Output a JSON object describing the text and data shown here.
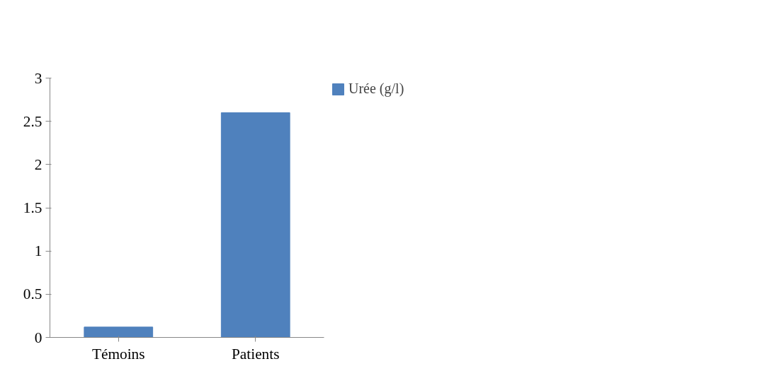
{
  "chart_data": {
    "type": "bar",
    "categories": [
      "Témoins",
      "Patients"
    ],
    "series": [
      {
        "name": "Urée (g/l)",
        "color": "#4f81bd",
        "values": [
          0.12,
          2.6
        ]
      }
    ],
    "ylim": [
      0,
      3
    ],
    "yticks": [
      0,
      0.5,
      1,
      1.5,
      2,
      2.5,
      3
    ],
    "grid": false,
    "legend": "top right"
  }
}
